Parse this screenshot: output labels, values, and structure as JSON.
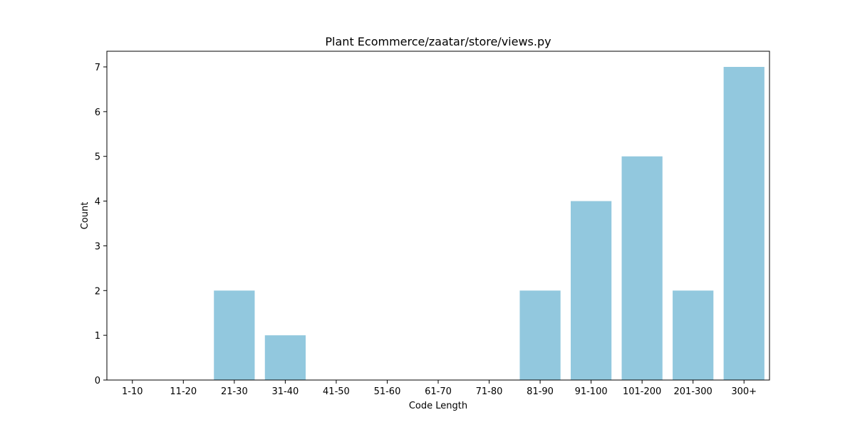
{
  "chart_data": {
    "type": "bar",
    "title": "Plant Ecommerce/zaatar/store/views.py",
    "xlabel": "Code Length",
    "ylabel": "Count",
    "categories": [
      "1-10",
      "11-20",
      "21-30",
      "31-40",
      "41-50",
      "51-60",
      "61-70",
      "71-80",
      "81-90",
      "91-100",
      "101-200",
      "201-300",
      "300+"
    ],
    "values": [
      0,
      0,
      2,
      1,
      0,
      0,
      0,
      0,
      2,
      4,
      5,
      2,
      7
    ],
    "yticks": [
      0,
      1,
      2,
      3,
      4,
      5,
      6,
      7
    ],
    "ylim": [
      0,
      7.35
    ],
    "bar_color": "#92c8de",
    "grid": false,
    "legend": "none"
  }
}
